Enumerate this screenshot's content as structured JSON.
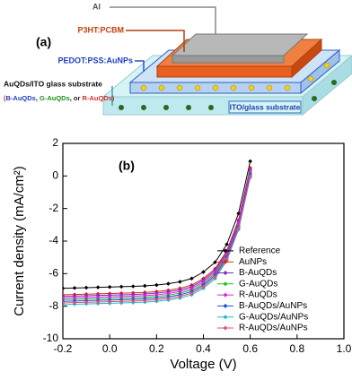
{
  "diagram": {
    "panel_label": "(a)",
    "al": "Al",
    "active_layer": "P3HT:PCBM",
    "pedot": "PEDOT:PSS:AuNPs",
    "substrate_label": "AuQDs/ITO glass substrate",
    "substrate_options": [
      {
        "text": "(",
        "color": "#d03030"
      },
      {
        "text": "B-AuQDs",
        "color": "#2040c0"
      },
      {
        "text": ", ",
        "color": "#222222"
      },
      {
        "text": "G-AuQDs",
        "color": "#209020"
      },
      {
        "text": ", or ",
        "color": "#222222"
      },
      {
        "text": "R-AuQDs",
        "color": "#d03030"
      },
      {
        "text": ")",
        "color": "#d03030"
      }
    ],
    "ito": "ITO/glass substrate"
  },
  "chart_data": {
    "type": "line",
    "panel_label": "(b)",
    "x_label": "Voltage (V)",
    "y_label": "Current density (mA/cm²)",
    "x": [
      -0.2,
      -0.15,
      -0.1,
      -0.05,
      0,
      0.05,
      0.1,
      0.15,
      0.2,
      0.25,
      0.3,
      0.35,
      0.4,
      0.45,
      0.5,
      0.55,
      0.6
    ],
    "xlim": [
      -0.2,
      1.0
    ],
    "xticks": [
      -0.2,
      {
        "value": 0,
        "label": "0.0"
      },
      0.2,
      0.4,
      0.6,
      0.8,
      {
        "value": 1,
        "label": "1.0"
      }
    ],
    "ylim": [
      -10,
      2
    ],
    "yticks": [
      -10,
      -8,
      -6,
      -4,
      -2,
      0,
      2
    ],
    "legend": "lower right",
    "series": [
      {
        "name": "Reference",
        "color": "#000000",
        "values": [
          -6.9,
          -6.88,
          -6.86,
          -6.84,
          -6.82,
          -6.8,
          -6.78,
          -6.75,
          -6.7,
          -6.62,
          -6.5,
          -6.3,
          -5.9,
          -5.3,
          -4.2,
          -2.3,
          0.9
        ]
      },
      {
        "name": "AuNPs",
        "color": "#e02020",
        "values": [
          -7.3,
          -7.28,
          -7.26,
          -7.24,
          -7.22,
          -7.2,
          -7.18,
          -7.15,
          -7.1,
          -7.02,
          -6.9,
          -6.7,
          -6.3,
          -5.7,
          -4.6,
          -2.7,
          0.5
        ]
      },
      {
        "name": "B-AuQDs",
        "color": "#7030c0",
        "values": [
          -7.4,
          -7.38,
          -7.36,
          -7.34,
          -7.32,
          -7.3,
          -7.28,
          -7.25,
          -7.2,
          -7.12,
          -7.0,
          -6.8,
          -6.4,
          -5.8,
          -4.7,
          -2.8,
          0.4
        ]
      },
      {
        "name": "G-AuQDs",
        "color": "#20c020",
        "values": [
          -7.6,
          -7.58,
          -7.56,
          -7.54,
          -7.52,
          -7.5,
          -7.48,
          -7.45,
          -7.4,
          -7.32,
          -7.2,
          -7.0,
          -6.6,
          -6.0,
          -4.9,
          -3.0,
          0.2
        ]
      },
      {
        "name": "R-AuQDs",
        "color": "#e020e0",
        "values": [
          -7.5,
          -7.48,
          -7.46,
          -7.44,
          -7.42,
          -7.4,
          -7.38,
          -7.35,
          -7.3,
          -7.22,
          -7.1,
          -6.9,
          -6.5,
          -5.9,
          -4.8,
          -2.9,
          0.3
        ]
      },
      {
        "name": "B-AuQDs/AuNPs",
        "color": "#2050e0",
        "values": [
          -7.7,
          -7.68,
          -7.66,
          -7.64,
          -7.62,
          -7.6,
          -7.58,
          -7.55,
          -7.5,
          -7.42,
          -7.3,
          -7.1,
          -6.7,
          -6.1,
          -5.0,
          -3.1,
          0.1
        ]
      },
      {
        "name": "G-AuQDs/AuNPs",
        "color": "#20b8d0",
        "values": [
          -7.9,
          -7.88,
          -7.86,
          -7.84,
          -7.82,
          -7.8,
          -7.78,
          -7.75,
          -7.7,
          -7.62,
          -7.5,
          -7.3,
          -6.9,
          -6.3,
          -5.2,
          -3.3,
          -0.1
        ]
      },
      {
        "name": "R-AuQDs/AuNPs",
        "color": "#e05070",
        "values": [
          -7.8,
          -7.78,
          -7.76,
          -7.74,
          -7.72,
          -7.7,
          -7.68,
          -7.65,
          -7.6,
          -7.52,
          -7.4,
          -7.2,
          -6.8,
          -6.2,
          -5.1,
          -3.2,
          0.0
        ]
      }
    ]
  }
}
